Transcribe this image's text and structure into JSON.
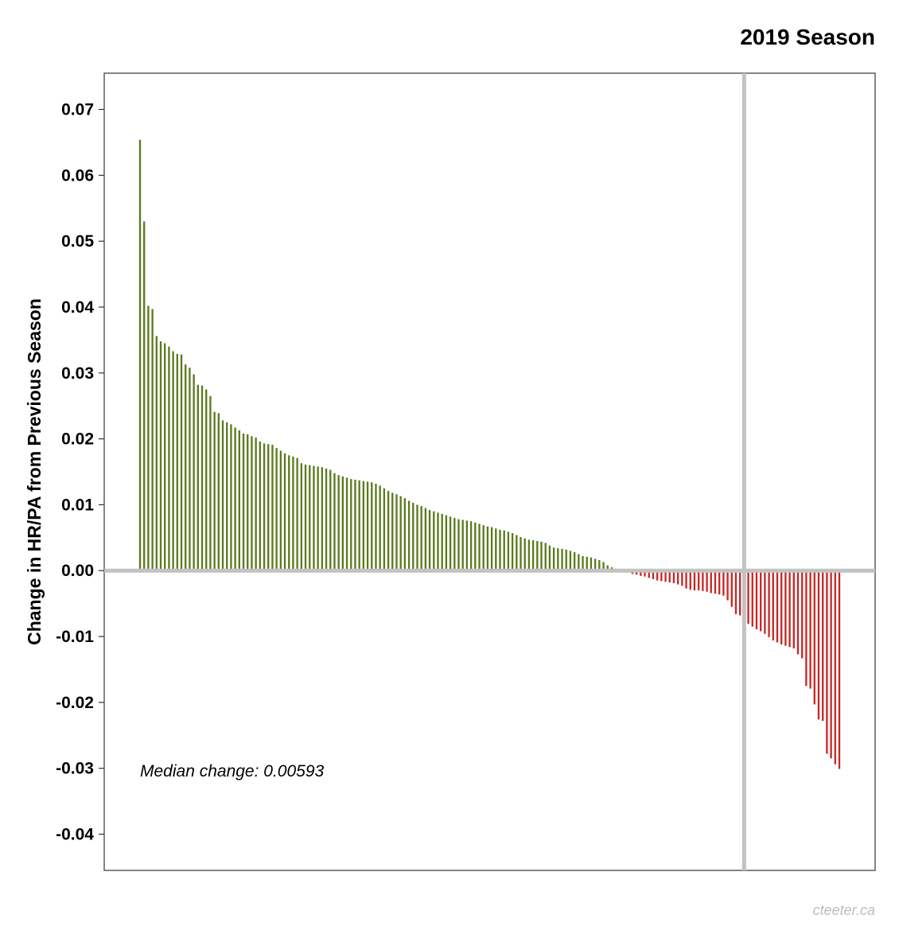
{
  "chart_data": {
    "type": "bar",
    "title": "2019 Season",
    "ylabel": "Change in HR/PA from Previous Season",
    "xlabel": "",
    "ylim": [
      -0.0455,
      0.0755
    ],
    "y_ticks": [
      0.07,
      0.06,
      0.05,
      0.04,
      0.03,
      0.02,
      0.01,
      0.0,
      -0.01,
      -0.02,
      -0.03,
      -0.04
    ],
    "y_tick_labels": [
      "0.07",
      "0.06",
      "0.05",
      "0.04",
      "0.03",
      "0.02",
      "0.01",
      "0.00",
      "-0.01",
      "-0.02",
      "-0.03",
      "-0.04"
    ],
    "grid": false,
    "median_line_at_index": 146,
    "annotation": "Median change: 0.00593",
    "positive_color": "#5b7a1e",
    "negative_color": "#c62828",
    "reference_line_color": "#c2c2c2",
    "values": [
      0.0654,
      0.053,
      0.0402,
      0.0397,
      0.0356,
      0.0348,
      0.0345,
      0.034,
      0.0333,
      0.0329,
      0.0328,
      0.0313,
      0.0308,
      0.0298,
      0.0282,
      0.0281,
      0.0275,
      0.0265,
      0.0241,
      0.0239,
      0.0228,
      0.0225,
      0.0222,
      0.0217,
      0.0213,
      0.0208,
      0.0207,
      0.0204,
      0.0202,
      0.0196,
      0.0193,
      0.0192,
      0.0191,
      0.0186,
      0.0182,
      0.0178,
      0.0175,
      0.0173,
      0.0171,
      0.0163,
      0.0161,
      0.016,
      0.0159,
      0.0158,
      0.0157,
      0.0155,
      0.0153,
      0.0148,
      0.0145,
      0.0143,
      0.0141,
      0.0139,
      0.0138,
      0.0137,
      0.0136,
      0.0135,
      0.0134,
      0.0132,
      0.0129,
      0.0125,
      0.0121,
      0.0118,
      0.0116,
      0.0113,
      0.011,
      0.0106,
      0.0103,
      0.01,
      0.0098,
      0.0095,
      0.0092,
      0.009,
      0.0088,
      0.0086,
      0.0084,
      0.0082,
      0.008,
      0.0078,
      0.0077,
      0.0076,
      0.0075,
      0.0073,
      0.0071,
      0.0069,
      0.0067,
      0.0066,
      0.0064,
      0.0062,
      0.0061,
      0.0059,
      0.0057,
      0.0054,
      0.0051,
      0.0049,
      0.0047,
      0.0046,
      0.0045,
      0.0044,
      0.0042,
      0.0038,
      0.0035,
      0.0034,
      0.0033,
      0.0032,
      0.003,
      0.0028,
      0.0025,
      0.0022,
      0.0021,
      0.002,
      0.0018,
      0.0016,
      0.0013,
      0.0008,
      0.0005,
      0.0003,
      0.0001,
      -0.0001,
      -0.0003,
      -0.0005,
      -0.0006,
      -0.0008,
      -0.0009,
      -0.0011,
      -0.0013,
      -0.0015,
      -0.0016,
      -0.0017,
      -0.0018,
      -0.0019,
      -0.0021,
      -0.0023,
      -0.0027,
      -0.0029,
      -0.003,
      -0.003,
      -0.0031,
      -0.0032,
      -0.0034,
      -0.0035,
      -0.0036,
      -0.0038,
      -0.0045,
      -0.0055,
      -0.0066,
      -0.0068,
      -0.0071,
      -0.0081,
      -0.0085,
      -0.0089,
      -0.0092,
      -0.0096,
      -0.0101,
      -0.0106,
      -0.0109,
      -0.0112,
      -0.0114,
      -0.0116,
      -0.0118,
      -0.0127,
      -0.0133,
      -0.0175,
      -0.0179,
      -0.0203,
      -0.0226,
      -0.0228,
      -0.0278,
      -0.0285,
      -0.0294,
      -0.0301
    ]
  },
  "credit": "cteeter.ca"
}
